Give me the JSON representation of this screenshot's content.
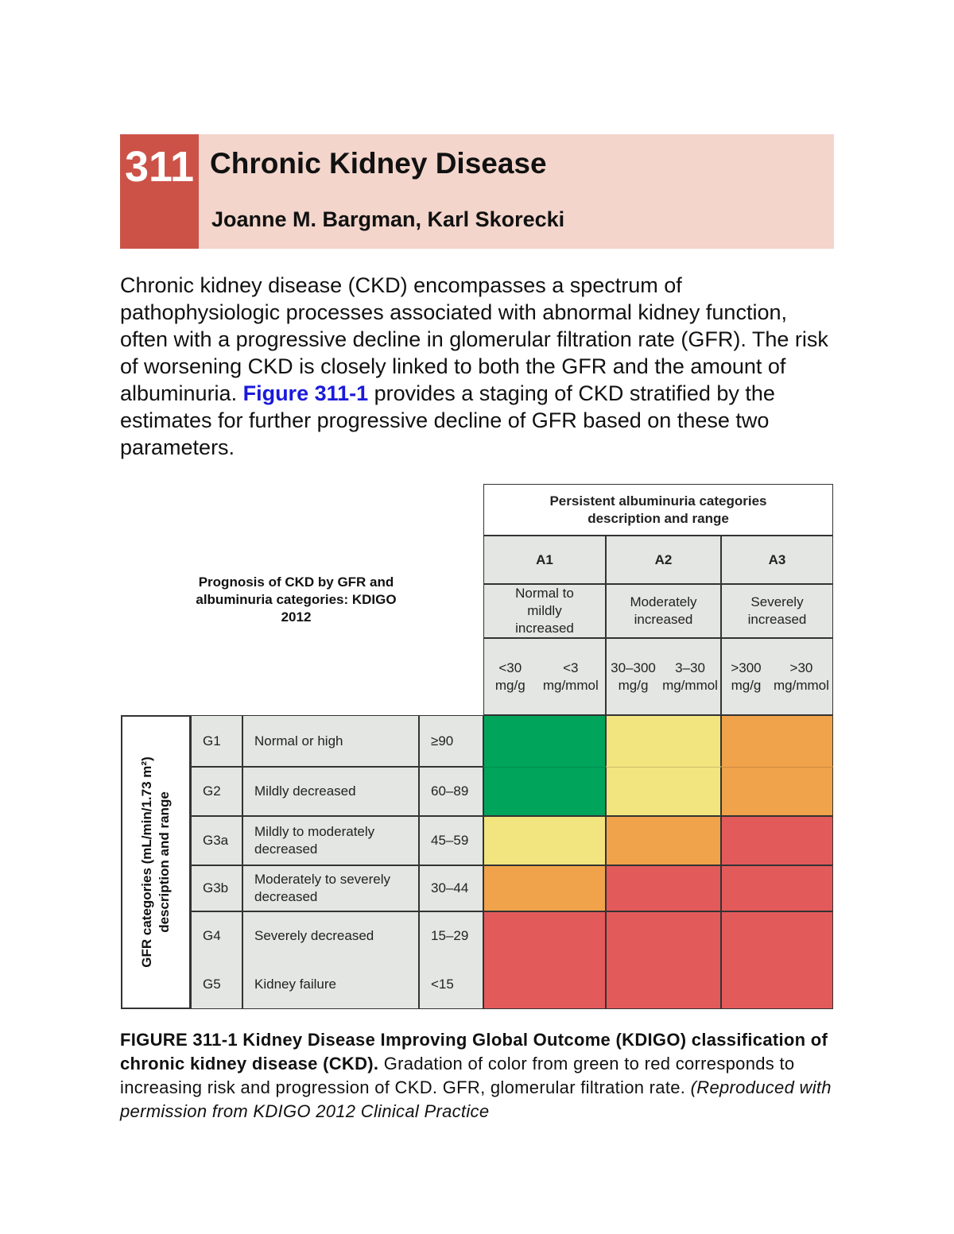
{
  "chapter": {
    "number": "311",
    "title": "Chronic Kidney Disease",
    "authors": "Joanne M. Bargman, Karl Skorecki"
  },
  "intro": {
    "before": "Chronic kidney disease (CKD) encompasses a spectrum of pathophysiologic processes associated with abnormal kidney function, often with a progressive decline in glomerular filtration rate (GFR). The risk of worsening CKD is closely linked to both the GFR and the amount of albuminuria. ",
    "link": "Figure 311-1",
    "after": " provides a staging of CKD stratified by the estimates for further progressive decline of GFR based on these two parameters."
  },
  "figure": {
    "prognosis_title": "Prognosis of CKD by GFR and albuminuria categories: KDIGO 2012",
    "albuminuria_header": "Persistent albuminuria categories description and range",
    "gfr_header_line1": "GFR categories (mL/min/1.73 m²)",
    "gfr_header_line2": "description and range",
    "columns": [
      {
        "code": "A1",
        "desc": "Normal to mildly increased",
        "range1": "<30 mg/g",
        "range2": "<3 mg/mmol"
      },
      {
        "code": "A2",
        "desc": "Moderately increased",
        "range1": "30–300 mg/g",
        "range2": "3–30 mg/mmol"
      },
      {
        "code": "A3",
        "desc": "Severely increased",
        "range1": ">300 mg/g",
        "range2": ">30 mg/mmol"
      }
    ],
    "rows": [
      {
        "code": "G1",
        "desc": "Normal or high",
        "range": "≥90",
        "risk": [
          "green",
          "yellow",
          "orange"
        ]
      },
      {
        "code": "G2",
        "desc": "Mildly decreased",
        "range": "60–89",
        "risk": [
          "green",
          "yellow",
          "orange"
        ]
      },
      {
        "code": "G3a",
        "desc": "Mildly to moderately decreased",
        "range": "45–59",
        "risk": [
          "yellow",
          "orange",
          "red"
        ]
      },
      {
        "code": "G3b",
        "desc": "Moderately to severely decreased",
        "range": "30–44",
        "risk": [
          "orange",
          "red",
          "red"
        ]
      },
      {
        "code": "G4",
        "desc": "Severely decreased",
        "range": "15–29",
        "risk": [
          "red",
          "red",
          "red"
        ]
      },
      {
        "code": "G5",
        "desc": "Kidney failure",
        "range": "<15",
        "risk": [
          "red",
          "red",
          "red"
        ]
      }
    ],
    "colors": {
      "green": "#00a55b",
      "yellow": "#f2e47f",
      "orange": "#f0a34b",
      "red": "#e35a5b",
      "cell_bg": "#e4e6e3",
      "header_bg": "#f3d5cb",
      "chapter_red": "#cc5248",
      "link": "#1a1adc"
    }
  },
  "caption": {
    "bold": "FIGURE 311-1 Kidney Disease Improving Global Outcome (KDIGO) classification of chronic kidney disease (CKD).",
    "normal": " Gradation of color from green to red corresponds to increasing risk and progression of CKD. GFR, glomerular filtration rate. ",
    "italic": "(Reproduced with permission from KDIGO 2012 Clinical Practice"
  }
}
